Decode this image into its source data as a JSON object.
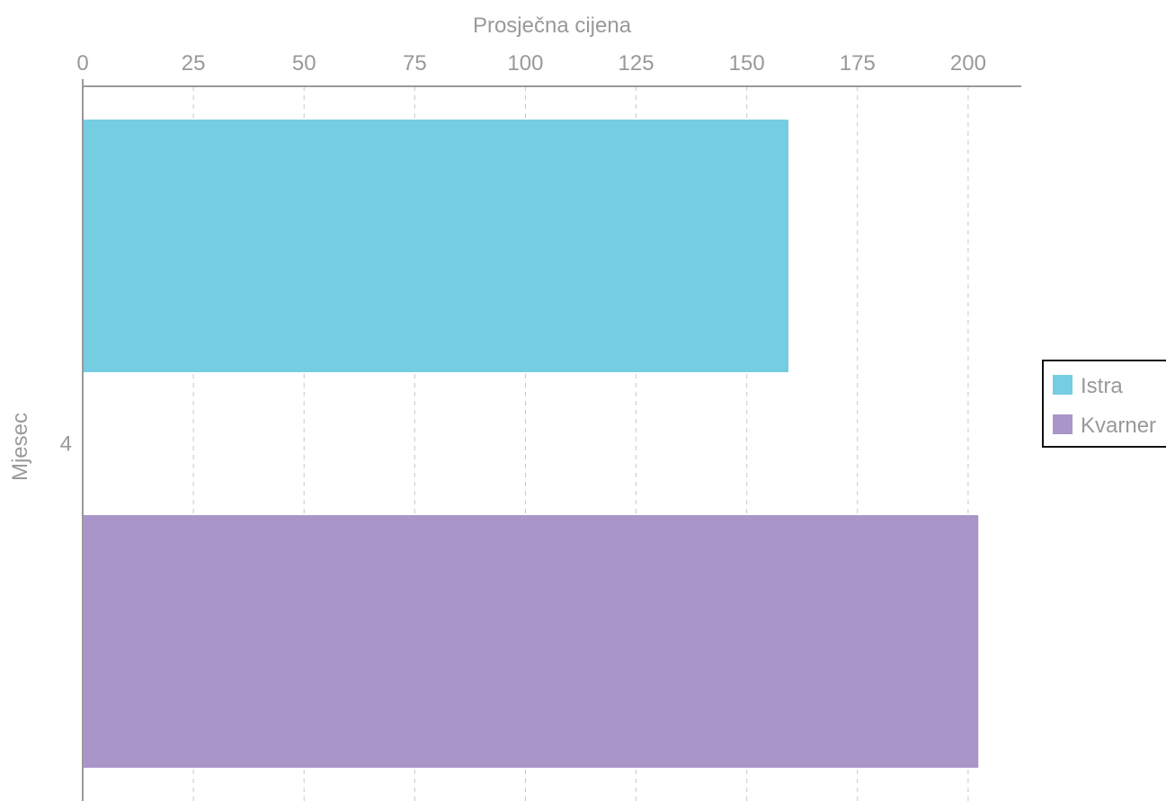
{
  "chart_data": {
    "type": "bar",
    "orientation": "horizontal",
    "categories": [
      "4"
    ],
    "series": [
      {
        "name": "Istra",
        "values": [
          159.4
        ],
        "color": "#74CDE0"
      },
      {
        "name": "Kvarner",
        "values": [
          202.3
        ],
        "color": "#AA95C9"
      }
    ],
    "xlabel": "Prosječna cijena",
    "ylabel": "Mjesec",
    "xlim": [
      0,
      212
    ],
    "xticks": [
      0,
      25,
      50,
      75,
      100,
      125,
      150,
      175,
      200
    ],
    "grid": true,
    "legend_position": "right"
  }
}
